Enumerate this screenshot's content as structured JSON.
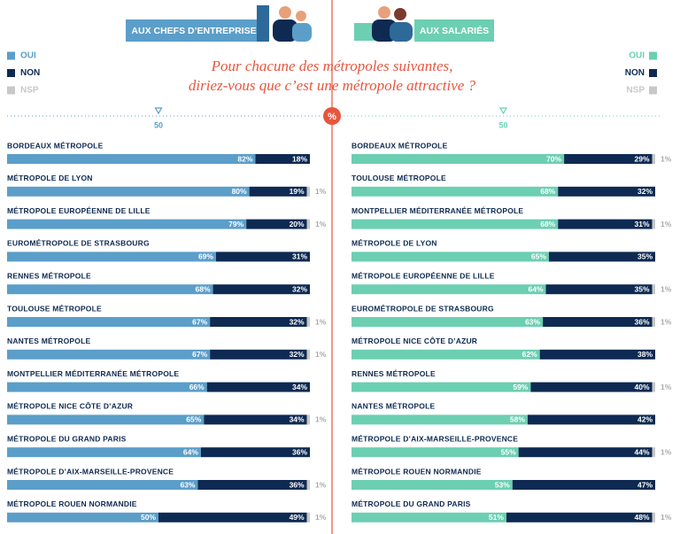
{
  "title": [
    "Pour chacune des métropoles suivantes,",
    "diriez-vous que c’est une métropole attractive ?"
  ],
  "percent_symbol": "%",
  "chart_data": [
    {
      "type": "bar",
      "orientation": "horizontal",
      "stacked": true,
      "title": "AUX CHEFS D’ENTREPRISE",
      "categories": [
        "BORDEAUX MÉTROPOLE",
        "MÉTROPOLE DE LYON",
        "MÉTROPOLE EUROPÉENNE DE LILLE",
        "EUROMÉTROPOLE DE STRASBOURG",
        "RENNES MÉTROPOLE",
        "TOULOUSE MÉTROPOLE",
        "NANTES MÉTROPOLE",
        "MONTPELLIER MÉDITERRANÉE MÉTROPOLE",
        "MÉTROPOLE NICE CÔTE D’AZUR",
        "MÉTROPOLE DU GRAND PARIS",
        "MÉTROPOLE D’AIX-MARSEILLE-PROVENCE",
        "MÉTROPOLE ROUEN NORMANDIE"
      ],
      "series": [
        {
          "name": "OUI",
          "color": "#5b9ec9",
          "values": [
            82,
            80,
            79,
            69,
            68,
            67,
            67,
            66,
            65,
            64,
            63,
            50
          ],
          "value_labels": [
            "82%",
            "80%",
            "79%",
            "69%",
            "68%",
            "67%",
            "67%",
            "66%",
            "65%",
            "64%",
            "63%",
            "50%"
          ]
        },
        {
          "name": "NON",
          "color": "#0e2a52",
          "values": [
            18,
            19,
            20,
            31,
            32,
            32,
            32,
            34,
            34,
            36,
            36,
            49
          ],
          "value_labels": [
            "18%",
            "19%",
            "20%",
            "31%",
            "32%",
            "32%",
            "32%",
            "34%",
            "34%",
            "36%",
            "36%",
            "49%"
          ]
        },
        {
          "name": "NSP",
          "color": "#c8c8c8",
          "values": [
            null,
            1,
            1,
            null,
            null,
            1,
            1,
            null,
            1,
            null,
            1,
            1
          ],
          "value_labels": [
            null,
            "1%",
            "1%",
            null,
            null,
            "1%",
            "1%",
            null,
            "1%",
            null,
            "1%",
            "1%"
          ]
        }
      ],
      "xlim": [
        0,
        100
      ],
      "xticks": [
        50
      ],
      "legend": "top-left"
    },
    {
      "type": "bar",
      "orientation": "horizontal",
      "stacked": true,
      "title": "AUX SALARIÉS",
      "categories": [
        "BORDEAUX MÉTROPOLE",
        "TOULOUSE MÉTROPOLE",
        "MONTPELLIER MÉDITERRANÉE MÉTROPOLE",
        "MÉTROPOLE DE LYON",
        "MÉTROPOLE EUROPÉENNE DE LILLE",
        "EUROMÉTROPOLE DE STRASBOURG",
        "MÉTROPOLE NICE CÔTE D’AZUR",
        "RENNES MÉTROPOLE",
        "NANTES MÉTROPOLE",
        "MÉTROPOLE D’AIX-MARSEILLE-PROVENCE",
        "MÉTROPOLE ROUEN NORMANDIE",
        "MÉTROPOLE DU GRAND PARIS"
      ],
      "series": [
        {
          "name": "OUI",
          "color": "#6ccfb2",
          "values": [
            70,
            68,
            68,
            65,
            64,
            63,
            62,
            59,
            58,
            55,
            53,
            51
          ],
          "value_labels": [
            "70%",
            "68%",
            "68%",
            "65%",
            "64%",
            "63%",
            "62%",
            "59%",
            "58%",
            "55%",
            "53%",
            "51%"
          ]
        },
        {
          "name": "NON",
          "color": "#0e2a52",
          "values": [
            29,
            32,
            31,
            35,
            35,
            36,
            38,
            40,
            42,
            44,
            47,
            48
          ],
          "value_labels": [
            "29%",
            "32%",
            "31%",
            "35%",
            "35%",
            "36%",
            "38%",
            "40%",
            "42%",
            "44%",
            "47%",
            "48%"
          ]
        },
        {
          "name": "NSP",
          "color": "#c8c8c8",
          "values": [
            1,
            null,
            1,
            null,
            1,
            1,
            null,
            1,
            null,
            1,
            null,
            1
          ],
          "value_labels": [
            "1%",
            null,
            "1%",
            null,
            "1%",
            "1%",
            null,
            "1%",
            null,
            "1%",
            null,
            "1%"
          ]
        }
      ],
      "xlim": [
        0,
        100
      ],
      "xticks": [
        50
      ],
      "legend": "top-right"
    }
  ]
}
